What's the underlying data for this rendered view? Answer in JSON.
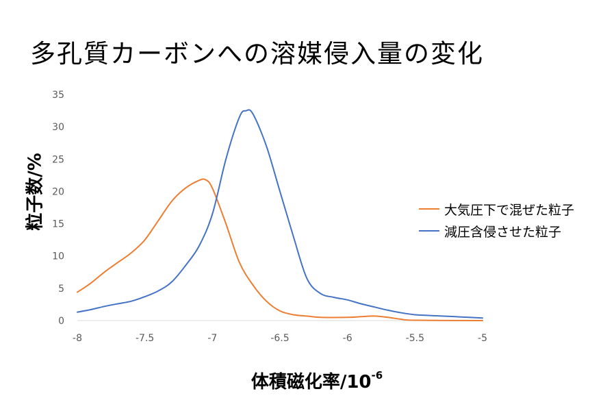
{
  "slide": {
    "title": "多孔質カーボンへの溶媒侵入量の変化"
  },
  "chart_data": {
    "type": "line",
    "ylabel": "粒子数/%",
    "xlabel": "体積磁化率/10",
    "xlabel_exponent": "-6",
    "xlim": [
      -8,
      -5
    ],
    "ylim": [
      0,
      35
    ],
    "x_ticks": [
      "-8",
      "-7.5",
      "-7",
      "-6.5",
      "-6",
      "-5.5",
      "-5"
    ],
    "y_ticks": [
      "0",
      "5",
      "10",
      "15",
      "20",
      "25",
      "30",
      "35"
    ],
    "grid": false,
    "legend_position": "right",
    "series": [
      {
        "name": "大気圧下で混ぜた粒子",
        "color": "#ED7D31",
        "points": [
          [
            -8.0,
            4.4
          ],
          [
            -7.9,
            5.8
          ],
          [
            -7.8,
            7.5
          ],
          [
            -7.7,
            9.0
          ],
          [
            -7.6,
            10.5
          ],
          [
            -7.5,
            12.5
          ],
          [
            -7.4,
            15.5
          ],
          [
            -7.3,
            18.5
          ],
          [
            -7.2,
            20.5
          ],
          [
            -7.1,
            21.7
          ],
          [
            -7.05,
            21.8
          ],
          [
            -7.0,
            20.5
          ],
          [
            -6.9,
            15.0
          ],
          [
            -6.8,
            9.0
          ],
          [
            -6.7,
            5.5
          ],
          [
            -6.6,
            3.0
          ],
          [
            -6.5,
            1.5
          ],
          [
            -6.4,
            0.9
          ],
          [
            -6.3,
            0.7
          ],
          [
            -6.2,
            0.5
          ],
          [
            -6.0,
            0.5
          ],
          [
            -5.9,
            0.6
          ],
          [
            -5.8,
            0.7
          ],
          [
            -5.7,
            0.5
          ],
          [
            -5.6,
            0.2
          ],
          [
            -5.5,
            0.05
          ],
          [
            -5.0,
            0.0
          ]
        ]
      },
      {
        "name": "減圧含侵させた粒子",
        "color": "#4472C4",
        "points": [
          [
            -8.0,
            1.3
          ],
          [
            -7.9,
            1.7
          ],
          [
            -7.8,
            2.2
          ],
          [
            -7.7,
            2.6
          ],
          [
            -7.6,
            3.0
          ],
          [
            -7.5,
            3.7
          ],
          [
            -7.4,
            4.6
          ],
          [
            -7.3,
            6.0
          ],
          [
            -7.2,
            8.5
          ],
          [
            -7.1,
            11.5
          ],
          [
            -7.0,
            16.5
          ],
          [
            -6.9,
            25.0
          ],
          [
            -6.8,
            31.5
          ],
          [
            -6.75,
            32.5
          ],
          [
            -6.7,
            32.0
          ],
          [
            -6.6,
            27.0
          ],
          [
            -6.5,
            20.0
          ],
          [
            -6.4,
            13.0
          ],
          [
            -6.3,
            6.5
          ],
          [
            -6.2,
            4.2
          ],
          [
            -6.1,
            3.6
          ],
          [
            -6.0,
            3.2
          ],
          [
            -5.9,
            2.6
          ],
          [
            -5.8,
            2.1
          ],
          [
            -5.7,
            1.6
          ],
          [
            -5.6,
            1.2
          ],
          [
            -5.5,
            0.9
          ],
          [
            -5.4,
            0.8
          ],
          [
            -5.3,
            0.7
          ],
          [
            -5.2,
            0.6
          ],
          [
            -5.1,
            0.5
          ],
          [
            -5.0,
            0.4
          ]
        ]
      }
    ]
  }
}
